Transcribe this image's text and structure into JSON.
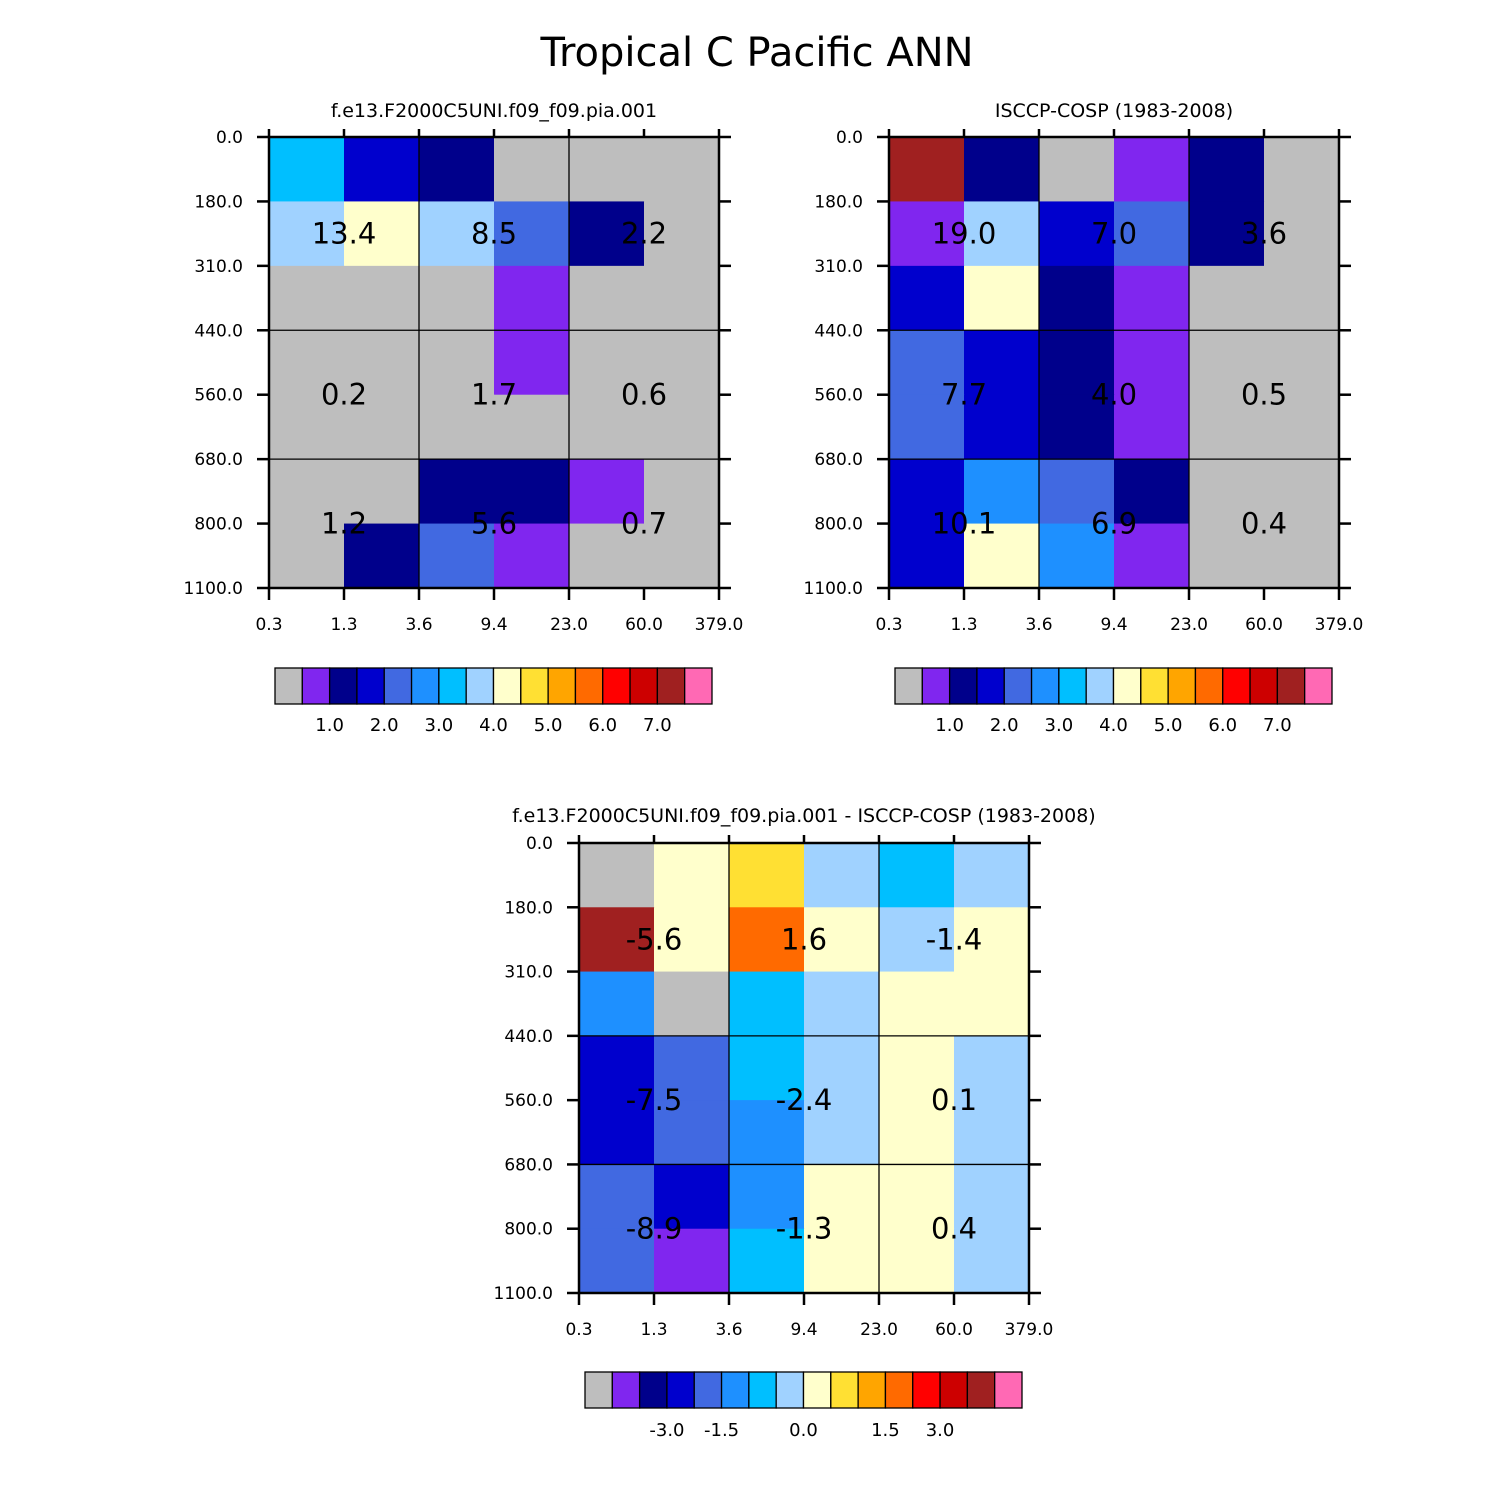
{
  "title": "Tropical C Pacific ANN",
  "colors": {
    "palette": [
      "#bebebe",
      "#8026ef",
      "#00008b",
      "#0000cd",
      "#4169e1",
      "#1e90ff",
      "#00bfff",
      "#a0d2ff",
      "#ffffcc",
      "#ffe033",
      "#ffa500",
      "#ff6a00",
      "#ff0000",
      "#cd0000",
      "#a02020",
      "#ff69b4"
    ],
    "grid_line": "#000000",
    "background": "#ffffff"
  },
  "chart_data": [
    {
      "type": "heatmap",
      "title": "f.e13.F2000C5UNI.f09_f09.pia.001",
      "xlabel": "",
      "ylabel": "",
      "x_tick_labels": [
        "0.3",
        "1.3",
        "3.6",
        "9.4",
        "23.0",
        "60.0",
        "379.0"
      ],
      "y_tick_labels": [
        "0.0",
        "180.0",
        "310.0",
        "440.0",
        "560.0",
        "680.0",
        "800.0",
        "1100.0"
      ],
      "grid_colors": [
        [
          6,
          3,
          2,
          0,
          0,
          0
        ],
        [
          7,
          8,
          7,
          4,
          2,
          0
        ],
        [
          0,
          0,
          0,
          1,
          0,
          0
        ],
        [
          0,
          0,
          0,
          1,
          0,
          0
        ],
        [
          0,
          0,
          0,
          0,
          0,
          0
        ],
        [
          0,
          0,
          2,
          2,
          1,
          0
        ],
        [
          0,
          2,
          4,
          1,
          0,
          0
        ]
      ],
      "group_labels": [
        [
          "13.4",
          "8.5",
          "2.2"
        ],
        [
          "0.2",
          "1.7",
          "0.6"
        ],
        [
          "1.2",
          "5.6",
          "0.7"
        ]
      ],
      "colorbar": {
        "labels": [
          "1.0",
          "2.0",
          "3.0",
          "4.0",
          "5.0",
          "6.0",
          "7.0"
        ]
      }
    },
    {
      "type": "heatmap",
      "title": "ISCCP-COSP (1983-2008)",
      "xlabel": "",
      "ylabel": "",
      "x_tick_labels": [
        "0.3",
        "1.3",
        "3.6",
        "9.4",
        "23.0",
        "60.0",
        "379.0"
      ],
      "y_tick_labels": [
        "0.0",
        "180.0",
        "310.0",
        "440.0",
        "560.0",
        "680.0",
        "800.0",
        "1100.0"
      ],
      "grid_colors": [
        [
          14,
          2,
          0,
          1,
          2,
          0
        ],
        [
          1,
          7,
          3,
          4,
          2,
          0
        ],
        [
          3,
          8,
          2,
          1,
          0,
          0
        ],
        [
          4,
          3,
          2,
          1,
          0,
          0
        ],
        [
          4,
          3,
          2,
          1,
          0,
          0
        ],
        [
          3,
          5,
          4,
          2,
          0,
          0
        ],
        [
          3,
          8,
          5,
          1,
          0,
          0
        ]
      ],
      "group_labels": [
        [
          "19.0",
          "7.0",
          "3.6"
        ],
        [
          "7.7",
          "4.0",
          "0.5"
        ],
        [
          "10.1",
          "6.9",
          "0.4"
        ]
      ],
      "colorbar": {
        "labels": [
          "1.0",
          "2.0",
          "3.0",
          "4.0",
          "5.0",
          "6.0",
          "7.0"
        ]
      }
    },
    {
      "type": "heatmap",
      "title": "f.e13.F2000C5UNI.f09_f09.pia.001 - ISCCP-COSP (1983-2008)",
      "xlabel": "",
      "ylabel": "",
      "x_tick_labels": [
        "0.3",
        "1.3",
        "3.6",
        "9.4",
        "23.0",
        "60.0",
        "379.0"
      ],
      "y_tick_labels": [
        "0.0",
        "180.0",
        "310.0",
        "440.0",
        "560.0",
        "680.0",
        "800.0",
        "1100.0"
      ],
      "grid_colors": [
        [
          0,
          8,
          9,
          7,
          6,
          7
        ],
        [
          14,
          8,
          11,
          8,
          7,
          8
        ],
        [
          5,
          0,
          6,
          7,
          8,
          8
        ],
        [
          3,
          4,
          6,
          7,
          8,
          7
        ],
        [
          3,
          4,
          5,
          7,
          8,
          7
        ],
        [
          4,
          3,
          5,
          8,
          8,
          7
        ],
        [
          4,
          1,
          6,
          8,
          8,
          7
        ]
      ],
      "group_labels": [
        [
          "-5.6",
          "1.6",
          "-1.4"
        ],
        [
          "-7.5",
          "-2.4",
          "0.1"
        ],
        [
          "-8.9",
          "-1.3",
          "0.4"
        ]
      ],
      "colorbar": {
        "labels": [
          "-3.0",
          "-1.5",
          "0.0",
          "1.5",
          "3.0"
        ]
      }
    }
  ]
}
